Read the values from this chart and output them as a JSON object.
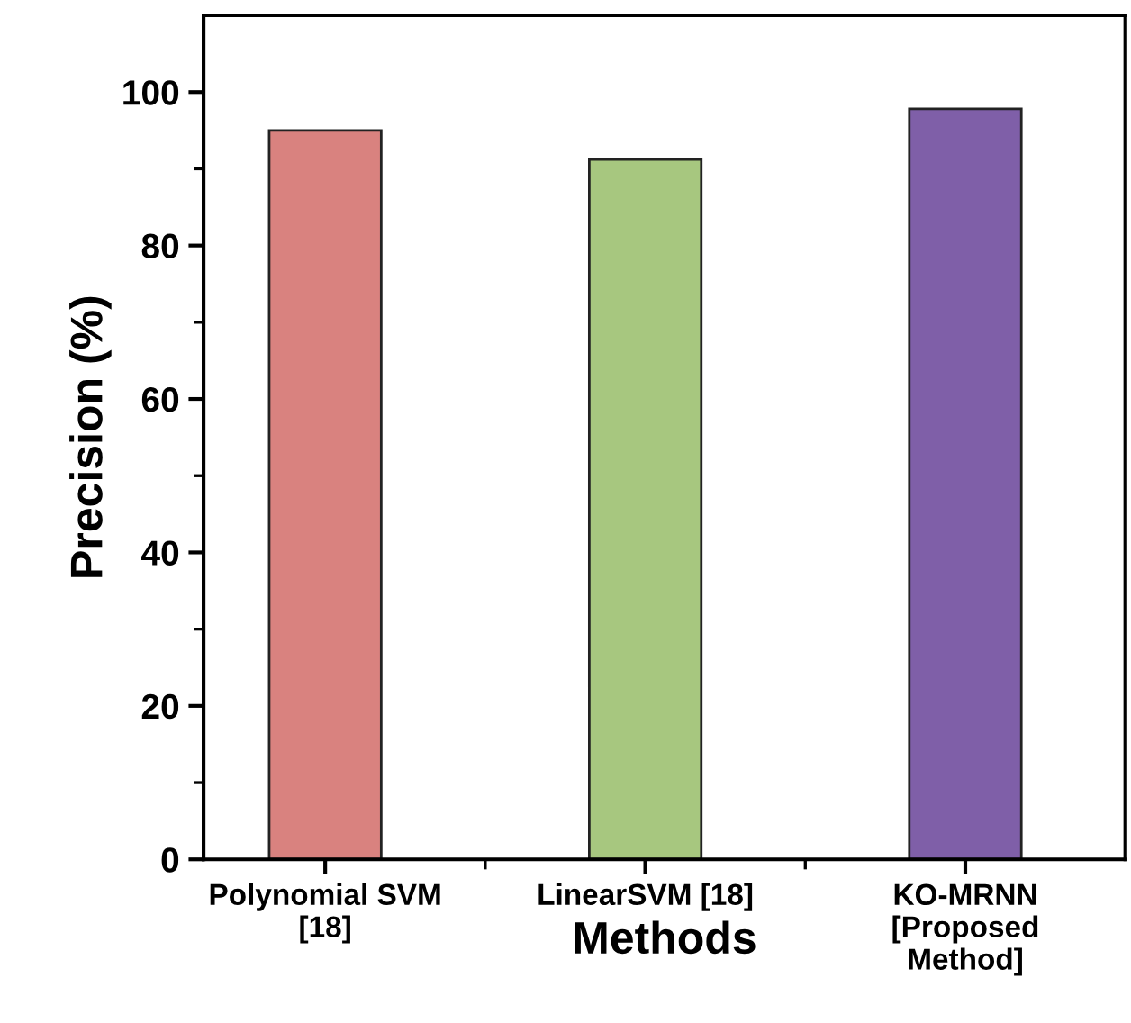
{
  "chart_data": {
    "type": "bar",
    "xlabel": "Methods",
    "ylabel": "Precision (%)",
    "categories": [
      "Polynomial SVM\n[18]",
      "LinearSVM [18]",
      "KO-MRNN\n[Proposed\nMethod]"
    ],
    "values": [
      95,
      91.2,
      97.8
    ],
    "colors": [
      "#d9827f",
      "#a7c77f",
      "#7f5fa8"
    ],
    "ylim": [
      0,
      110
    ],
    "yticks": [
      0,
      20,
      40,
      60,
      80,
      100
    ],
    "grid": false,
    "legend": false
  }
}
